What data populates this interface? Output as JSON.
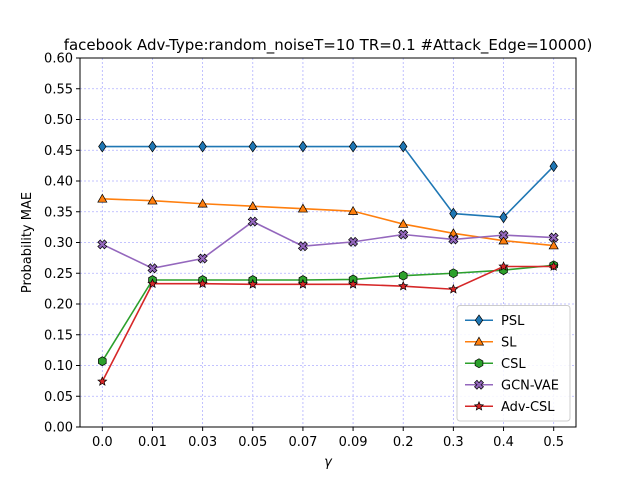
{
  "chart_data": {
    "type": "line",
    "title": "facebook Adv-Type:random_noiseT=10 TR=0.1 #Attack_Edge=10000)",
    "xlabel": "γ",
    "ylabel": "Probability MAE",
    "categories": [
      "0.0",
      "0.01",
      "0.03",
      "0.05",
      "0.07",
      "0.09",
      "0.2",
      "0.3",
      "0.4",
      "0.5"
    ],
    "ylim": [
      0.0,
      0.6
    ],
    "yticks": [
      "0.00",
      "0.05",
      "0.10",
      "0.15",
      "0.20",
      "0.25",
      "0.30",
      "0.35",
      "0.40",
      "0.45",
      "0.50",
      "0.55",
      "0.60"
    ],
    "grid": true,
    "legend_position": "lower-right",
    "series": [
      {
        "name": "PSL",
        "color": "#1f77b4",
        "marker": "diamond",
        "values": [
          0.456,
          0.456,
          0.456,
          0.456,
          0.456,
          0.456,
          0.456,
          0.347,
          0.341,
          0.424
        ]
      },
      {
        "name": "SL",
        "color": "#ff7f0e",
        "marker": "triangle",
        "values": [
          0.371,
          0.368,
          0.363,
          0.359,
          0.355,
          0.351,
          0.33,
          0.315,
          0.303,
          0.295
        ]
      },
      {
        "name": "CSL",
        "color": "#2ca02c",
        "marker": "hexagon",
        "values": [
          0.107,
          0.239,
          0.239,
          0.239,
          0.239,
          0.24,
          0.246,
          0.25,
          0.255,
          0.263
        ]
      },
      {
        "name": "GCN-VAE",
        "color": "#9467bd",
        "marker": "x-filled",
        "values": [
          0.297,
          0.258,
          0.274,
          0.334,
          0.294,
          0.301,
          0.313,
          0.305,
          0.312,
          0.308
        ]
      },
      {
        "name": "Adv-CSL",
        "color": "#d62728",
        "marker": "star",
        "values": [
          0.074,
          0.233,
          0.233,
          0.232,
          0.232,
          0.232,
          0.229,
          0.224,
          0.261,
          0.261
        ]
      }
    ]
  }
}
